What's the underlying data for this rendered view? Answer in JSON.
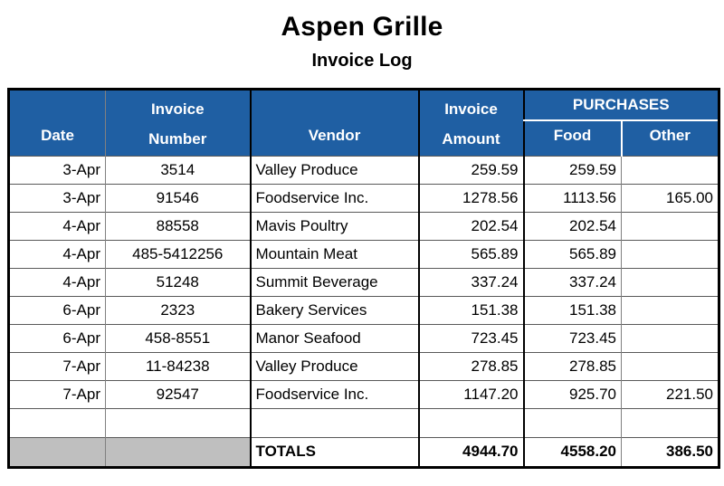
{
  "page": {
    "title": "Aspen Grille",
    "subtitle": "Invoice Log"
  },
  "table": {
    "headers": {
      "date": "Date",
      "invoice_number": "Invoice\nNumber",
      "vendor": "Vendor",
      "invoice_amount": "Invoice\nAmount",
      "purchases": "PURCHASES",
      "food": "Food",
      "other": "Other"
    },
    "rows": [
      {
        "date": "3-Apr",
        "number": "3514",
        "vendor": "Valley Produce",
        "amount": "259.59",
        "food": "259.59",
        "other": ""
      },
      {
        "date": "3-Apr",
        "number": "91546",
        "vendor": "Foodservice Inc.",
        "amount": "1278.56",
        "food": "1113.56",
        "other": "165.00"
      },
      {
        "date": "4-Apr",
        "number": "88558",
        "vendor": "Mavis Poultry",
        "amount": "202.54",
        "food": "202.54",
        "other": ""
      },
      {
        "date": "4-Apr",
        "number": "485-5412256",
        "vendor": "Mountain Meat",
        "amount": "565.89",
        "food": "565.89",
        "other": ""
      },
      {
        "date": "4-Apr",
        "number": "51248",
        "vendor": "Summit Beverage",
        "amount": "337.24",
        "food": "337.24",
        "other": ""
      },
      {
        "date": "6-Apr",
        "number": "2323",
        "vendor": "Bakery Services",
        "amount": "151.38",
        "food": "151.38",
        "other": ""
      },
      {
        "date": "6-Apr",
        "number": "458-8551",
        "vendor": "Manor Seafood",
        "amount": "723.45",
        "food": "723.45",
        "other": ""
      },
      {
        "date": "7-Apr",
        "number": "11-84238",
        "vendor": "Valley Produce",
        "amount": "278.85",
        "food": "278.85",
        "other": ""
      },
      {
        "date": "7-Apr",
        "number": "92547",
        "vendor": "Foodservice Inc.",
        "amount": "1147.20",
        "food": "925.70",
        "other": "221.50"
      }
    ],
    "totals": {
      "label": "TOTALS",
      "amount": "4944.70",
      "food": "4558.20",
      "other": "386.50"
    },
    "colors": {
      "header_bg": "#1F5FA3",
      "header_text": "#FFFFFF",
      "totals_fill": "#BFBFBF",
      "grid_line": "#595959",
      "border": "#000000"
    }
  }
}
